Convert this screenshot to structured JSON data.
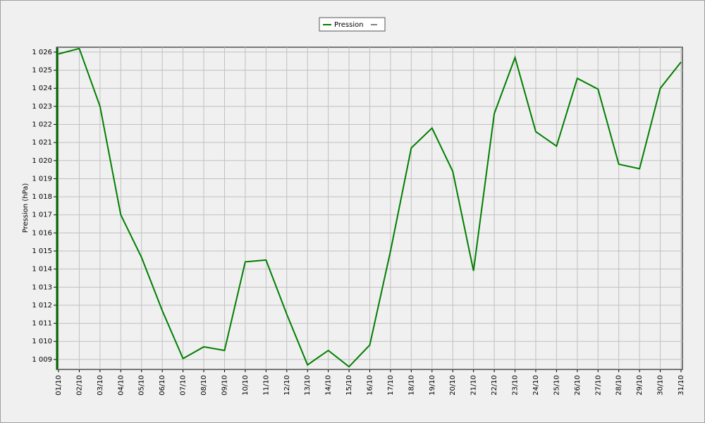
{
  "chart_data": {
    "type": "line",
    "y_label": "Pression (hPa)",
    "categories": [
      "01/10",
      "02/10",
      "03/10",
      "04/10",
      "05/10",
      "06/10",
      "07/10",
      "08/10",
      "09/10",
      "10/10",
      "11/10",
      "12/10",
      "13/10",
      "14/10",
      "15/10",
      "16/10",
      "17/10",
      "18/10",
      "19/10",
      "20/10",
      "21/10",
      "22/10",
      "23/10",
      "24/10",
      "25/10",
      "26/10",
      "27/10",
      "28/10",
      "29/10",
      "30/10",
      "31/10"
    ],
    "series": [
      {
        "name": "Pression",
        "color": "#007f00",
        "values": [
          1025.9,
          1026.2,
          1023.0,
          1017.0,
          1014.65,
          1011.7,
          1009.05,
          1009.7,
          1009.5,
          1014.4,
          1014.5,
          1011.5,
          1008.7,
          1009.5,
          1008.6,
          1009.8,
          1015.0,
          1020.7,
          1021.8,
          1019.4,
          1013.9,
          1022.6,
          1025.7,
          1021.6,
          1020.8,
          1024.55,
          1023.95,
          1019.8,
          1019.55,
          1024.0,
          1025.45
        ]
      }
    ],
    "ylim": [
      1008.45,
      1026.27
    ],
    "yticks": [
      {
        "value": 1009,
        "label": "1 009"
      },
      {
        "value": 1010,
        "label": "1 010"
      },
      {
        "value": 1011,
        "label": "1 011"
      },
      {
        "value": 1012,
        "label": "1 012"
      },
      {
        "value": 1013,
        "label": "1 013"
      },
      {
        "value": 1014,
        "label": "1 014"
      },
      {
        "value": 1015,
        "label": "1 015"
      },
      {
        "value": 1016,
        "label": "1 016"
      },
      {
        "value": 1017,
        "label": "1 017"
      },
      {
        "value": 1018,
        "label": "1 018"
      },
      {
        "value": 1019,
        "label": "1 019"
      },
      {
        "value": 1020,
        "label": "1 020"
      },
      {
        "value": 1021,
        "label": "1 021"
      },
      {
        "value": 1022,
        "label": "1 022"
      },
      {
        "value": 1023,
        "label": "1 023"
      },
      {
        "value": 1024,
        "label": "1 024"
      },
      {
        "value": 1025,
        "label": "1 025"
      },
      {
        "value": 1026,
        "label": "1 026"
      }
    ],
    "grid": true
  }
}
